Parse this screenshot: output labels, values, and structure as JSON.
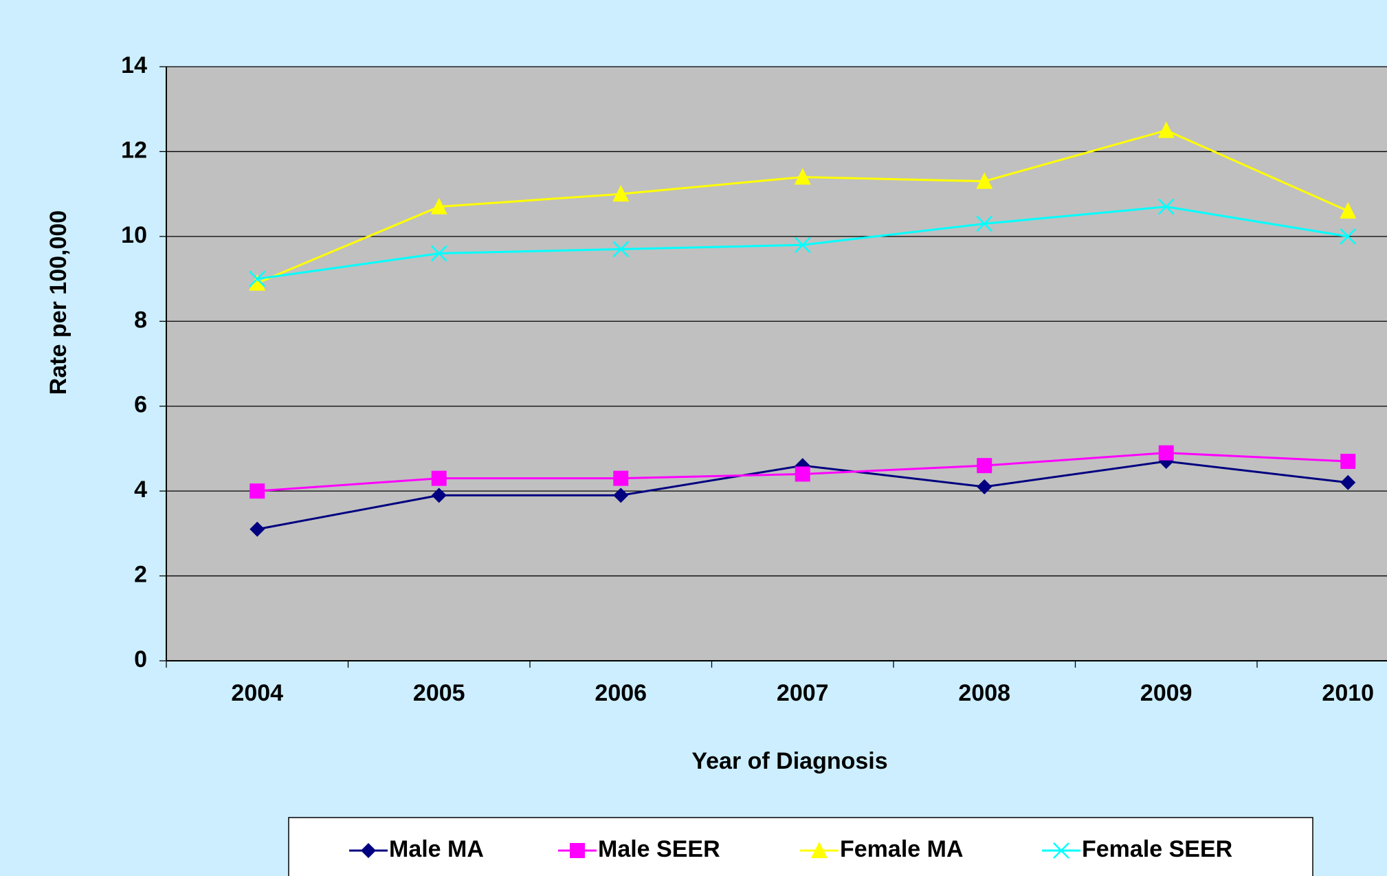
{
  "chart_data": {
    "type": "line",
    "x_label": "Year of Diagnosis",
    "y_label": "Rate per 100,000",
    "categories": [
      "2004",
      "2005",
      "2006",
      "2007",
      "2008",
      "2009",
      "2010"
    ],
    "series": [
      {
        "name": "Male MA",
        "color": "#000080",
        "marker": "diamond",
        "values": [
          3.1,
          3.9,
          3.9,
          4.6,
          4.1,
          4.7,
          4.2
        ]
      },
      {
        "name": "Male SEER",
        "color": "#ff00ff",
        "marker": "square",
        "values": [
          4.0,
          4.3,
          4.3,
          4.4,
          4.6,
          4.9,
          4.7
        ]
      },
      {
        "name": "Female MA",
        "color": "#ffff00",
        "marker": "triangle",
        "values": [
          8.9,
          10.7,
          11.0,
          11.4,
          11.3,
          12.5,
          10.6
        ]
      },
      {
        "name": "Female SEER",
        "color": "#00ffff",
        "marker": "x",
        "values": [
          9.0,
          9.6,
          9.7,
          9.8,
          10.3,
          10.7,
          10.0
        ]
      }
    ],
    "ylim": [
      0,
      14
    ],
    "yticks": [
      0,
      2,
      4,
      6,
      8,
      10,
      12,
      14
    ],
    "grid": true,
    "legend": "bottom"
  }
}
